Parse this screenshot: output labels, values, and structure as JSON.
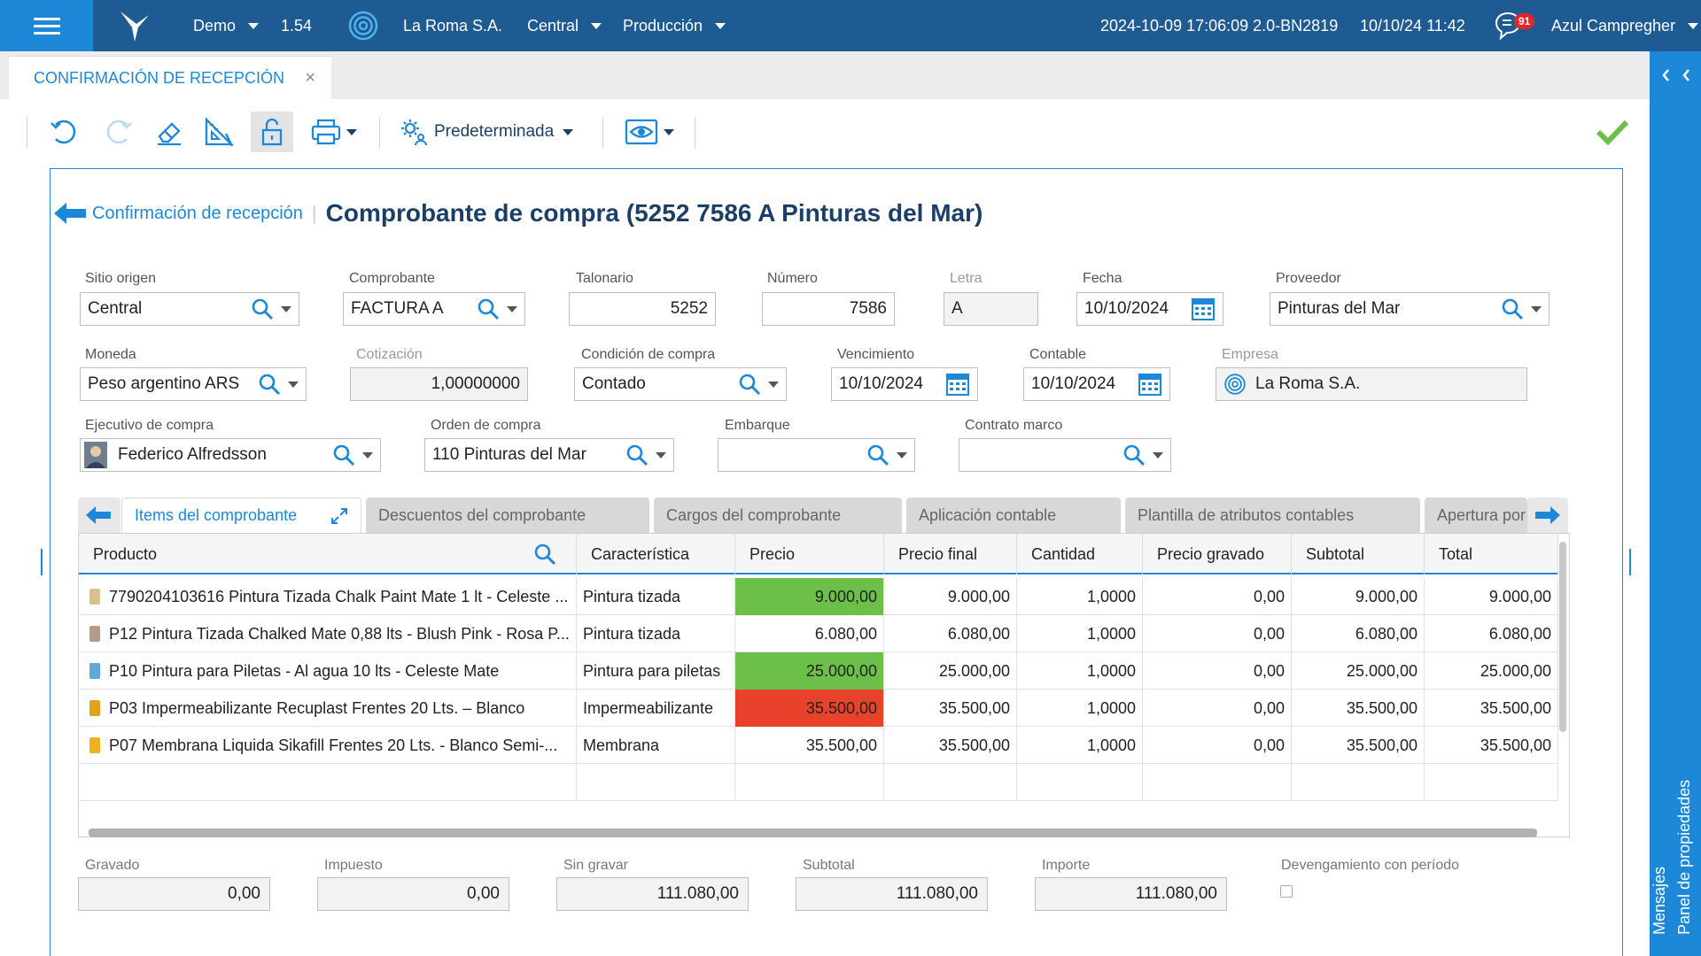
{
  "topbar": {
    "env": "Demo",
    "version": "1.54",
    "company": "La Roma S.A.",
    "site": "Central",
    "module": "Producción",
    "build": "2024-10-09 17:06:09 2.0-BN2819",
    "datetime": "10/10/24 11:42",
    "notifications": "91",
    "user": "Azul Campregher"
  },
  "document_tab": {
    "label": "CONFIRMACIÓN DE RECEPCIÓN",
    "close": "×"
  },
  "toolbar": {
    "view_label": "Predeterminada"
  },
  "breadcrumb": {
    "back": "Confirmación de recepción",
    "title": "Comprobante de compra (5252 7586 A Pinturas del Mar)"
  },
  "form": {
    "sitio_origen": {
      "label": "Sitio origen",
      "value": "Central"
    },
    "comprobante": {
      "label": "Comprobante",
      "value": "FACTURA A"
    },
    "talonario": {
      "label": "Talonario",
      "value": "5252"
    },
    "numero": {
      "label": "Número",
      "value": "7586"
    },
    "letra": {
      "label": "Letra",
      "value": "A"
    },
    "fecha": {
      "label": "Fecha",
      "value": "10/10/2024"
    },
    "proveedor": {
      "label": "Proveedor",
      "value": "Pinturas del Mar"
    },
    "moneda": {
      "label": "Moneda",
      "value": "Peso argentino ARS"
    },
    "cotizacion": {
      "label": "Cotización",
      "value": "1,00000000"
    },
    "condicion": {
      "label": "Condición de compra",
      "value": "Contado"
    },
    "vencimiento": {
      "label": "Vencimiento",
      "value": "10/10/2024"
    },
    "contable": {
      "label": "Contable",
      "value": "10/10/2024"
    },
    "empresa": {
      "label": "Empresa",
      "value": "La Roma S.A."
    },
    "ejecutivo": {
      "label": "Ejecutivo de compra",
      "value": "Federico Alfredsson"
    },
    "orden": {
      "label": "Orden de compra",
      "value": "110 Pinturas del Mar"
    },
    "embarque": {
      "label": "Embarque",
      "value": ""
    },
    "contrato": {
      "label": "Contrato marco",
      "value": ""
    }
  },
  "tabs": [
    {
      "label": "Items del comprobante"
    },
    {
      "label": "Descuentos del comprobante"
    },
    {
      "label": "Cargos del comprobante"
    },
    {
      "label": "Aplicación contable"
    },
    {
      "label": "Plantilla de atributos contables"
    },
    {
      "label": "Apertura por"
    }
  ],
  "grid": {
    "columns": [
      "Producto",
      "Característica",
      "Precio",
      "Precio final",
      "Cantidad",
      "Precio gravado",
      "Subtotal",
      "Total"
    ],
    "rows": [
      {
        "producto": "7790204103616 Pintura Tizada Chalk Paint Mate 1 lt - Celeste ...",
        "caracteristica": "Pintura tizada",
        "precio": "9.000,00",
        "precio_final": "9.000,00",
        "cantidad": "1,0000",
        "gravado": "0,00",
        "subtotal": "9.000,00",
        "total": "9.000,00",
        "precio_color": "#6cc04a",
        "icon_color": "#d9c38a"
      },
      {
        "producto": "P12 Pintura Tizada Chalked Mate 0,88 lts - Blush Pink - Rosa P...",
        "caracteristica": "Pintura tizada",
        "precio": "6.080,00",
        "precio_final": "6.080,00",
        "cantidad": "1,0000",
        "gravado": "0,00",
        "subtotal": "6.080,00",
        "total": "6.080,00",
        "precio_color": "",
        "icon_color": "#b59a8a"
      },
      {
        "producto": "P10 Pintura para Piletas - Al agua 10 lts - Celeste Mate",
        "caracteristica": "Pintura para piletas",
        "precio": "25.000,00",
        "precio_final": "25.000,00",
        "cantidad": "1,0000",
        "gravado": "0,00",
        "subtotal": "25.000,00",
        "total": "25.000,00",
        "precio_color": "#6cc04a",
        "icon_color": "#5fa9d6"
      },
      {
        "producto": "P03 Impermeabilizante Recuplast Frentes 20 Lts. – Blanco",
        "caracteristica": "Impermeabilizante",
        "precio": "35.500,00",
        "precio_final": "35.500,00",
        "cantidad": "1,0000",
        "gravado": "0,00",
        "subtotal": "35.500,00",
        "total": "35.500,00",
        "precio_color": "#e8412c",
        "icon_color": "#e0a21a"
      },
      {
        "producto": "P07 Membrana Liquida Sikafill Frentes 20 Lts. - Blanco Semi-...",
        "caracteristica": "Membrana",
        "precio": "35.500,00",
        "precio_final": "35.500,00",
        "cantidad": "1,0000",
        "gravado": "0,00",
        "subtotal": "35.500,00",
        "total": "35.500,00",
        "precio_color": "",
        "icon_color": "#f0b020"
      }
    ]
  },
  "totals": {
    "gravado": {
      "label": "Gravado",
      "value": "0,00"
    },
    "impuesto": {
      "label": "Impuesto",
      "value": "0,00"
    },
    "sin_gravar": {
      "label": "Sin gravar",
      "value": "111.080,00"
    },
    "subtotal": {
      "label": "Subtotal",
      "value": "111.080,00"
    },
    "importe": {
      "label": "Importe",
      "value": "111.080,00"
    },
    "devengamiento": {
      "label": "Devengamiento con período"
    }
  },
  "sidepanel": {
    "messages": "Mensajes",
    "properties": "Panel de propiedades"
  },
  "colors": {
    "brand_dark": "#1d5b92",
    "brand": "#1e88d8",
    "ok_green": "#6cc04a",
    "alert_red": "#e8412c"
  }
}
